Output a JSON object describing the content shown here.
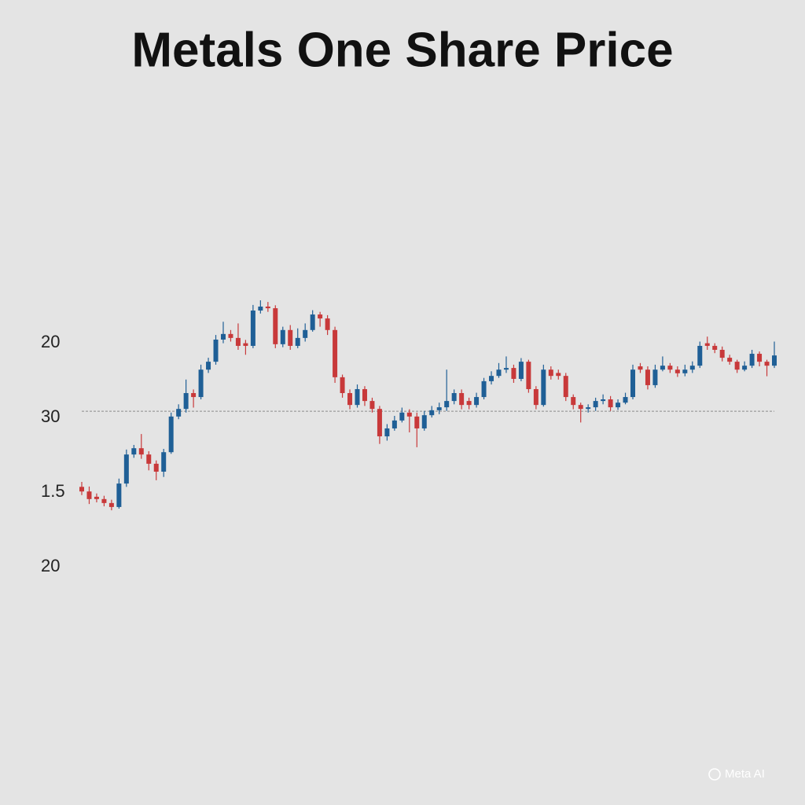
{
  "chart_data": {
    "type": "candlestick",
    "title": "Metals One Share Price",
    "y_labels": [
      "20",
      "30",
      "1.5",
      "20"
    ],
    "ylim": [
      0,
      100
    ],
    "up_color": "#1f5f96",
    "down_color": "#c8393a",
    "reference_line": 56.4,
    "open": [
      33.5,
      32.1,
      30.5,
      29.8,
      28.6,
      27.4,
      34.5,
      43.3,
      45.2,
      43.3,
      40.5,
      38.1,
      44.0,
      54.8,
      57.1,
      61.9,
      60.7,
      69.0,
      71.4,
      78.1,
      79.8,
      78.6,
      77.0,
      76.2,
      86.9,
      88.1,
      87.6,
      76.7,
      81.0,
      76.2,
      78.6,
      81.0,
      85.7,
      84.5,
      81.0,
      66.7,
      61.9,
      58.3,
      63.1,
      59.5,
      57.1,
      48.8,
      51.2,
      53.6,
      56.0,
      54.8,
      51.2,
      55.2,
      56.7,
      57.6,
      59.5,
      61.9,
      59.5,
      58.3,
      60.7,
      65.5,
      67.1,
      69.0,
      69.5,
      66.2,
      71.4,
      63.1,
      58.3,
      69.0,
      68.0,
      67.1,
      60.7,
      58.3,
      57.1,
      57.6,
      59.5,
      60.0,
      57.6,
      59.0,
      60.7,
      70.0,
      69.0,
      64.3,
      69.0,
      70.2,
      69.0,
      67.9,
      69.0,
      70.2,
      77.0,
      76.2,
      75.0,
      72.6,
      71.4,
      69.0,
      70.2,
      73.8,
      71.4,
      70.2
    ],
    "high": [
      35.0,
      33.6,
      31.5,
      30.8,
      29.6,
      36.0,
      44.8,
      46.2,
      49.5,
      44.3,
      41.5,
      45.0,
      56.0,
      58.5,
      66.0,
      63.0,
      70.5,
      72.6,
      79.5,
      83.5,
      81.0,
      83.0,
      78.0,
      88.6,
      90.0,
      89.5,
      88.5,
      82.0,
      82.5,
      81.5,
      83.0,
      87.0,
      86.5,
      85.5,
      82.0,
      67.5,
      63.0,
      64.5,
      64.0,
      60.5,
      58.0,
      52.5,
      55.0,
      57.5,
      57.0,
      56.0,
      56.5,
      58.0,
      59.0,
      69.0,
      63.0,
      63.0,
      60.5,
      62.0,
      66.5,
      68.5,
      71.0,
      73.0,
      70.5,
      72.5,
      72.0,
      64.0,
      70.5,
      70.0,
      69.0,
      68.0,
      61.5,
      59.0,
      58.5,
      60.5,
      61.5,
      61.0,
      60.0,
      62.0,
      70.5,
      71.0,
      70.0,
      70.5,
      73.0,
      71.0,
      70.0,
      70.5,
      71.5,
      77.5,
      79.0,
      77.0,
      76.0,
      73.5,
      72.0,
      71.5,
      75.0,
      74.5,
      72.0,
      77.5
    ],
    "low": [
      31.0,
      28.3,
      28.8,
      27.6,
      26.4,
      26.9,
      33.5,
      42.3,
      42.0,
      38.5,
      35.5,
      36.5,
      43.5,
      54.0,
      56.0,
      57.5,
      60.0,
      68.0,
      70.5,
      77.0,
      77.5,
      75.0,
      73.5,
      75.5,
      86.0,
      86.5,
      75.5,
      75.8,
      75.0,
      75.5,
      77.5,
      80.5,
      82.0,
      79.5,
      65.0,
      60.5,
      57.0,
      57.5,
      58.0,
      56.0,
      46.5,
      47.5,
      50.5,
      53.0,
      50.0,
      45.5,
      50.5,
      54.5,
      55.5,
      56.5,
      58.5,
      57.0,
      57.0,
      57.5,
      60.0,
      64.5,
      66.5,
      68.0,
      65.0,
      65.5,
      62.0,
      57.0,
      57.8,
      66.0,
      66.0,
      59.5,
      57.0,
      53.0,
      56.0,
      56.5,
      58.5,
      56.5,
      56.8,
      58.5,
      60.0,
      68.0,
      63.0,
      63.5,
      68.5,
      68.0,
      66.8,
      67.0,
      68.0,
      69.5,
      75.0,
      74.0,
      71.5,
      70.5,
      68.0,
      68.5,
      69.5,
      70.0,
      67.0,
      69.5
    ],
    "close": [
      32.1,
      29.8,
      29.8,
      28.6,
      27.4,
      34.5,
      43.3,
      45.2,
      43.3,
      40.5,
      38.1,
      44.0,
      54.8,
      57.1,
      61.9,
      60.7,
      69.0,
      71.4,
      78.1,
      79.8,
      78.6,
      76.2,
      76.2,
      86.9,
      88.1,
      87.6,
      76.7,
      81.0,
      76.2,
      78.6,
      81.0,
      85.7,
      84.5,
      81.0,
      66.7,
      61.9,
      58.3,
      63.1,
      59.5,
      57.1,
      48.8,
      51.2,
      53.6,
      56.0,
      54.8,
      51.2,
      55.2,
      56.7,
      57.6,
      59.5,
      61.9,
      58.3,
      58.3,
      60.7,
      65.5,
      67.1,
      69.0,
      69.5,
      66.2,
      71.4,
      63.1,
      58.3,
      69.0,
      67.1,
      67.1,
      60.7,
      58.3,
      57.1,
      57.6,
      59.5,
      60.0,
      57.6,
      59.0,
      60.7,
      69.0,
      69.0,
      64.3,
      69.0,
      70.2,
      69.0,
      67.9,
      69.0,
      70.2,
      76.2,
      76.2,
      75.0,
      72.6,
      71.4,
      69.0,
      70.2,
      73.8,
      71.4,
      70.2,
      73.3
    ]
  },
  "watermark": "Meta AI"
}
